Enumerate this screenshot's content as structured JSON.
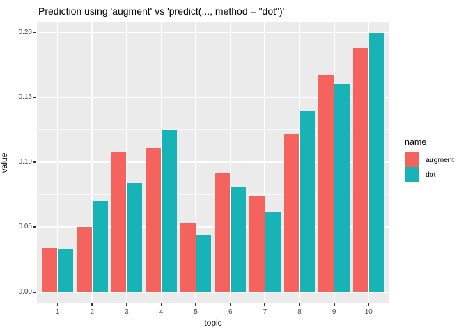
{
  "title": "Prediction using 'augment' vs 'predict(..., method = \"dot\")'",
  "chart_data": {
    "type": "bar",
    "subtype": "grouped",
    "title": "Prediction using 'augment' vs 'predict(..., method = \"dot\")'",
    "xlabel": "topic",
    "ylabel": "value",
    "legend_title": "name",
    "legend_position": "right",
    "grid": true,
    "panel_bg": "#EBEBEB",
    "grid_major_color": "#FFFFFF",
    "categories": [
      "1",
      "2",
      "3",
      "4",
      "5",
      "6",
      "7",
      "8",
      "9",
      "10"
    ],
    "series": [
      {
        "name": "augment",
        "color": "#F4635D",
        "values": [
          0.034,
          0.05,
          0.108,
          0.111,
          0.053,
          0.092,
          0.074,
          0.122,
          0.167,
          0.188
        ]
      },
      {
        "name": "dot",
        "color": "#17B3B7",
        "values": [
          0.033,
          0.07,
          0.084,
          0.125,
          0.044,
          0.081,
          0.062,
          0.14,
          0.161,
          0.2
        ]
      }
    ],
    "y_ticks": [
      "0.00",
      "0.05",
      "0.10",
      "0.15",
      "0.20"
    ],
    "y_minor_ticks": [
      0.025,
      0.075,
      0.125,
      0.175
    ],
    "ylim": [
      -0.0088,
      0.2086
    ]
  }
}
